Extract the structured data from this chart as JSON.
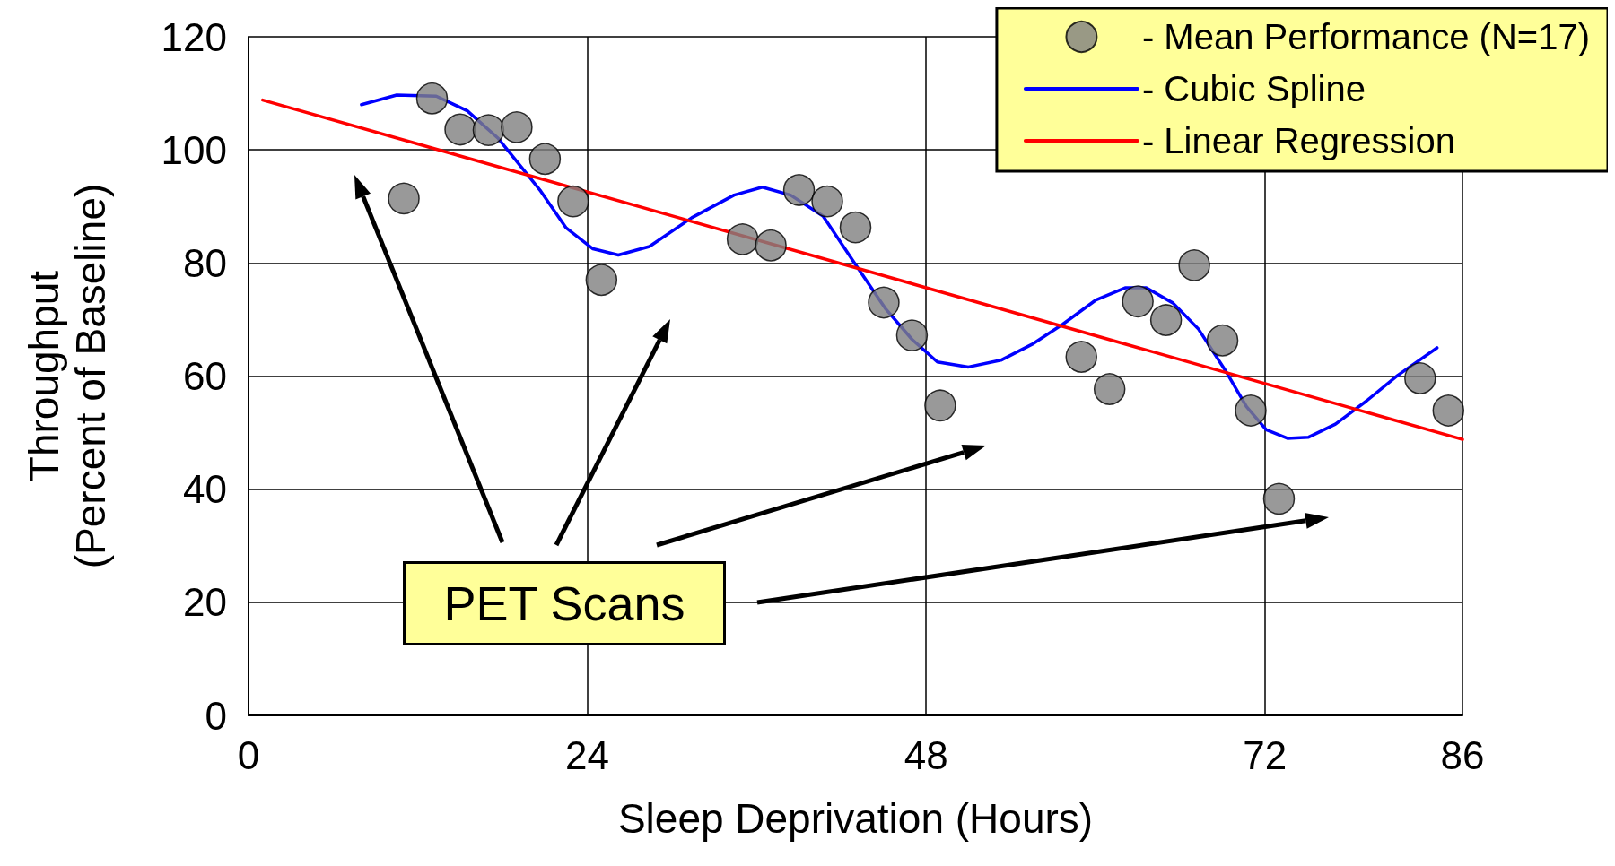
{
  "chart_data": {
    "type": "scatter",
    "xlabel": "Sleep Deprivation (Hours)",
    "ylabel": "Throughput\n(Percent of Baseline)",
    "xlim": [
      0,
      86
    ],
    "xticks": [
      0,
      24,
      48,
      72,
      86
    ],
    "ylim": [
      0,
      120
    ],
    "yticks": [
      0,
      20,
      40,
      60,
      80,
      100,
      120
    ],
    "grid": true,
    "legend": "top right",
    "annotations": [
      "PET Scans"
    ],
    "series": [
      {
        "name": "- Mean Performance (N=17)",
        "marker": "circle",
        "color": "#808080",
        "x": [
          11,
          13,
          15,
          17,
          19,
          21,
          23,
          25,
          35,
          37,
          39,
          41,
          43,
          45,
          47,
          49,
          59,
          61,
          63,
          65,
          67,
          69,
          71,
          73,
          83,
          85
        ],
        "values": [
          91.4,
          109.1,
          103.6,
          103.5,
          104,
          98.4,
          90.9,
          77,
          84.2,
          83.1,
          92.9,
          90.9,
          86.3,
          73,
          67.2,
          54.8,
          63.4,
          57.7,
          73.2,
          69.9,
          79.6,
          66.3,
          53.9,
          38.3,
          59.6,
          53.9
        ]
      },
      {
        "name": "- Cubic Spline",
        "type": "line",
        "color": "#0000ff",
        "x": [
          8,
          10.5,
          13.3,
          15.5,
          17.7,
          20.7,
          22.5,
          24.4,
          26.2,
          28.4,
          31.4,
          34.4,
          36.4,
          38.4,
          40.7,
          42.9,
          45.1,
          47,
          48.8,
          51,
          53.3,
          55.5,
          57.7,
          60,
          62.1,
          63.6,
          65.5,
          67.3,
          69.2,
          70.7,
          72.1,
          73.6,
          75.1,
          77,
          79.2,
          81.4,
          84.2
        ],
        "values": [
          108,
          109.7,
          109.5,
          106.9,
          102,
          92.7,
          86.2,
          82.5,
          81.4,
          82.9,
          88,
          92,
          93.4,
          92,
          88.3,
          80.1,
          72,
          66.5,
          62.5,
          61.6,
          62.8,
          65.6,
          69.2,
          73.4,
          75.6,
          75.6,
          72.9,
          68.3,
          61,
          54.6,
          50.5,
          49,
          49.2,
          51.5,
          55.6,
          60.1,
          65
        ]
      },
      {
        "name": "- Linear Regression",
        "type": "line",
        "color": "#ff0000",
        "x": [
          1,
          86
        ],
        "values": [
          108.8,
          48.8
        ]
      }
    ]
  }
}
